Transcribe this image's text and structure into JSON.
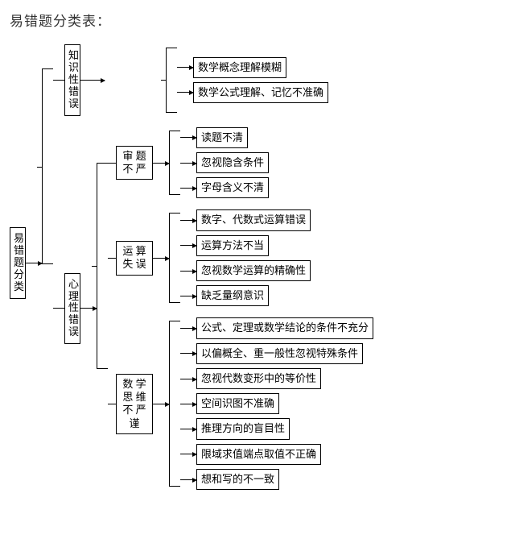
{
  "title": "易错题分类表：",
  "root": "易\n错\n题\n分\n类",
  "level1": {
    "a": "知\n识\n性\n错\n误",
    "b": "心\n理\n性\n错\n误"
  },
  "level2": {
    "b1": "审 题\n不 严",
    "b2": "运 算\n失 误",
    "b3": "数 学\n思 维\n不 严\n谨"
  },
  "leaves": {
    "a": [
      "数学概念理解模糊",
      "数学公式理解、记忆不准确"
    ],
    "b1": [
      "读题不清",
      "忽视隐含条件",
      "字母含义不清"
    ],
    "b2": [
      "数字、代数式运算错误",
      "运算方法不当",
      "忽视数学运算的精确性",
      "缺乏量纲意识"
    ],
    "b3": [
      "公式、定理或数学结论的条件不充分",
      "以偏概全、重一般性忽视特殊条件",
      "忽视代数变形中的等价性",
      "空间识图不准确",
      "推理方向的盲目性",
      "限域求值端点取值不正确",
      "想和写的不一致"
    ]
  },
  "colors": {
    "text": "#000000",
    "border": "#000000",
    "background": "#ffffff"
  }
}
